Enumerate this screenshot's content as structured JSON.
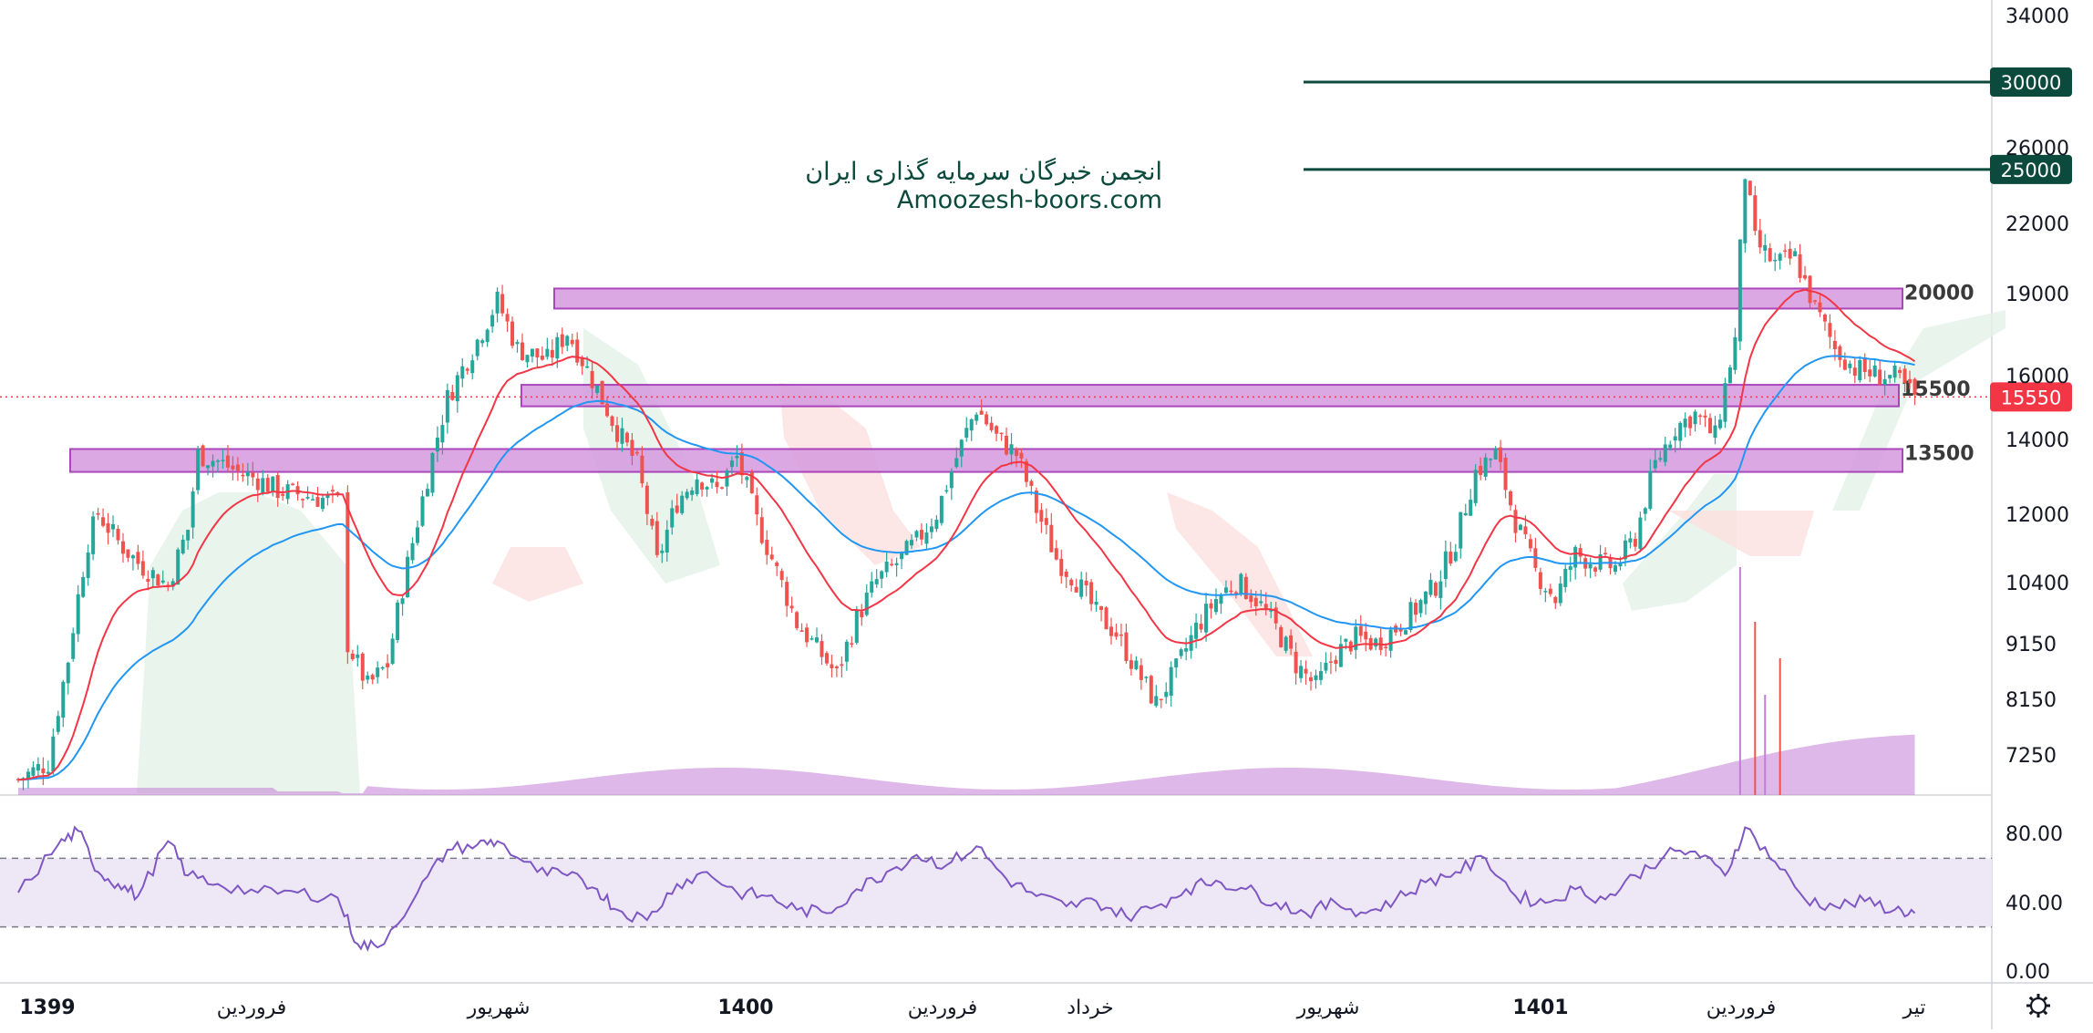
{
  "watermark": {
    "line1": "انجمن خبرگان سرمایه گذاری ایران",
    "line2": "Amoozesh-boors.com"
  },
  "colors": {
    "candle_up": "#26a69a",
    "candle_down": "#ef5350",
    "ema_fast": "#f23645",
    "ema_slow": "#2196f3",
    "zone_fill": "#d69ae0",
    "zone_border": "#9c27b0",
    "target_line": "#0b4a3c",
    "volume": "#c27ed6",
    "rsi_line": "#7e57c2",
    "rsi_band": "#ede7f6",
    "cloud_bull": "#e3f2e7",
    "cloud_bear": "#fde0e0",
    "price_tag": "#f23645"
  },
  "chart_data": {
    "type": "candlestick",
    "symbol_price_axis": {
      "ticks": [
        "34000",
        "26000",
        "22000",
        "19000",
        "16000",
        "14000",
        "12000",
        "10400",
        "9150",
        "8150",
        "7250"
      ],
      "scale": "log"
    },
    "time_axis": {
      "labels": [
        {
          "text": "1399",
          "bold": true
        },
        {
          "text": "فروردین",
          "bold": false
        },
        {
          "text": "شهریور",
          "bold": false
        },
        {
          "text": "1400",
          "bold": true
        },
        {
          "text": "فروردین",
          "bold": false
        },
        {
          "text": "خرداد",
          "bold": false
        },
        {
          "text": "شهریور",
          "bold": false
        },
        {
          "text": "1401",
          "bold": true
        },
        {
          "text": "فروردین",
          "bold": false
        },
        {
          "text": "تیر",
          "bold": false
        }
      ]
    },
    "current_price": "15550",
    "support_resistance_zones": [
      {
        "label": "20000",
        "low": 18700,
        "high": 19500
      },
      {
        "label": "15500",
        "low": 15250,
        "high": 15950
      },
      {
        "label": "13500",
        "low": 13300,
        "high": 13950
      }
    ],
    "target_lines": [
      {
        "label": "30000",
        "value": 30000
      },
      {
        "label": "25000",
        "value": 25000
      }
    ],
    "price_path": [
      [
        0,
        7000
      ],
      [
        3,
        7250
      ],
      [
        5,
        9000
      ],
      [
        7,
        11500
      ],
      [
        8,
        12200
      ],
      [
        10,
        11500
      ],
      [
        12,
        11000
      ],
      [
        15,
        10500
      ],
      [
        17,
        11800
      ],
      [
        18,
        13800
      ],
      [
        20,
        13600
      ],
      [
        22,
        13300
      ],
      [
        24,
        13100
      ],
      [
        26,
        12800
      ],
      [
        28,
        12700
      ],
      [
        30,
        12600
      ],
      [
        32,
        12500
      ],
      [
        33,
        9300
      ],
      [
        35,
        8500
      ],
      [
        37,
        8900
      ],
      [
        40,
        12000
      ],
      [
        43,
        15500
      ],
      [
        46,
        17500
      ],
      [
        48,
        19000
      ],
      [
        50,
        17200
      ],
      [
        53,
        16800
      ],
      [
        55,
        17800
      ],
      [
        58,
        15800
      ],
      [
        60,
        14500
      ],
      [
        62,
        13500
      ],
      [
        64,
        11000
      ],
      [
        66,
        12500
      ],
      [
        68,
        13200
      ],
      [
        70,
        12800
      ],
      [
        72,
        13700
      ],
      [
        74,
        12000
      ],
      [
        76,
        10800
      ],
      [
        78,
        9700
      ],
      [
        80,
        9200
      ],
      [
        82,
        8700
      ],
      [
        84,
        9800
      ],
      [
        86,
        10600
      ],
      [
        88,
        11000
      ],
      [
        90,
        11500
      ],
      [
        92,
        12200
      ],
      [
        94,
        13700
      ],
      [
        96,
        15200
      ],
      [
        98,
        14300
      ],
      [
        100,
        13800
      ],
      [
        102,
        12300
      ],
      [
        104,
        11100
      ],
      [
        106,
        10600
      ],
      [
        108,
        9900
      ],
      [
        110,
        9500
      ],
      [
        112,
        8800
      ],
      [
        114,
        8200
      ],
      [
        116,
        8800
      ],
      [
        118,
        9600
      ],
      [
        120,
        10200
      ],
      [
        122,
        10600
      ],
      [
        124,
        10200
      ],
      [
        126,
        9600
      ],
      [
        128,
        8900
      ],
      [
        130,
        8500
      ],
      [
        132,
        9100
      ],
      [
        134,
        9400
      ],
      [
        136,
        9300
      ],
      [
        138,
        9600
      ],
      [
        140,
        10000
      ],
      [
        142,
        10500
      ],
      [
        144,
        11500
      ],
      [
        146,
        13300
      ],
      [
        148,
        13800
      ],
      [
        150,
        12000
      ],
      [
        152,
        10800
      ],
      [
        154,
        10200
      ],
      [
        156,
        11200
      ],
      [
        158,
        11000
      ],
      [
        160,
        10900
      ],
      [
        162,
        11600
      ],
      [
        164,
        13500
      ],
      [
        166,
        14600
      ],
      [
        168,
        15000
      ],
      [
        170,
        14300
      ],
      [
        172,
        17500
      ],
      [
        173,
        24800
      ],
      [
        174,
        21500
      ],
      [
        176,
        20500
      ],
      [
        178,
        20800
      ],
      [
        180,
        18700
      ],
      [
        182,
        17200
      ],
      [
        184,
        16500
      ],
      [
        186,
        16300
      ],
      [
        188,
        16200
      ],
      [
        190,
        15550
      ]
    ],
    "rsi": {
      "ticks": [
        "80.00",
        "40.00",
        "0.00"
      ],
      "upper_band": 70,
      "lower_band": 30,
      "path": [
        [
          0,
          50
        ],
        [
          4,
          78
        ],
        [
          6,
          86
        ],
        [
          8,
          62
        ],
        [
          10,
          55
        ],
        [
          12,
          48
        ],
        [
          15,
          80
        ],
        [
          17,
          60
        ],
        [
          20,
          55
        ],
        [
          24,
          50
        ],
        [
          28,
          50
        ],
        [
          32,
          47
        ],
        [
          34,
          20
        ],
        [
          36,
          18
        ],
        [
          40,
          50
        ],
        [
          43,
          75
        ],
        [
          46,
          78
        ],
        [
          48,
          80
        ],
        [
          52,
          62
        ],
        [
          55,
          60
        ],
        [
          58,
          52
        ],
        [
          60,
          40
        ],
        [
          63,
          34
        ],
        [
          66,
          55
        ],
        [
          69,
          62
        ],
        [
          72,
          50
        ],
        [
          75,
          48
        ],
        [
          78,
          40
        ],
        [
          81,
          38
        ],
        [
          84,
          52
        ],
        [
          87,
          62
        ],
        [
          90,
          72
        ],
        [
          93,
          66
        ],
        [
          96,
          77
        ],
        [
          99,
          58
        ],
        [
          102,
          48
        ],
        [
          105,
          42
        ],
        [
          108,
          45
        ],
        [
          111,
          36
        ],
        [
          114,
          42
        ],
        [
          117,
          52
        ],
        [
          120,
          57
        ],
        [
          123,
          52
        ],
        [
          126,
          44
        ],
        [
          129,
          38
        ],
        [
          132,
          44
        ],
        [
          135,
          38
        ],
        [
          138,
          46
        ],
        [
          141,
          56
        ],
        [
          144,
          62
        ],
        [
          147,
          70
        ],
        [
          150,
          48
        ],
        [
          153,
          44
        ],
        [
          156,
          52
        ],
        [
          159,
          46
        ],
        [
          162,
          60
        ],
        [
          165,
          72
        ],
        [
          168,
          74
        ],
        [
          171,
          60
        ],
        [
          173,
          88
        ],
        [
          176,
          68
        ],
        [
          179,
          46
        ],
        [
          182,
          42
        ],
        [
          185,
          45
        ],
        [
          188,
          40
        ],
        [
          190,
          38
        ]
      ]
    },
    "grid": false,
    "legend": "none"
  }
}
